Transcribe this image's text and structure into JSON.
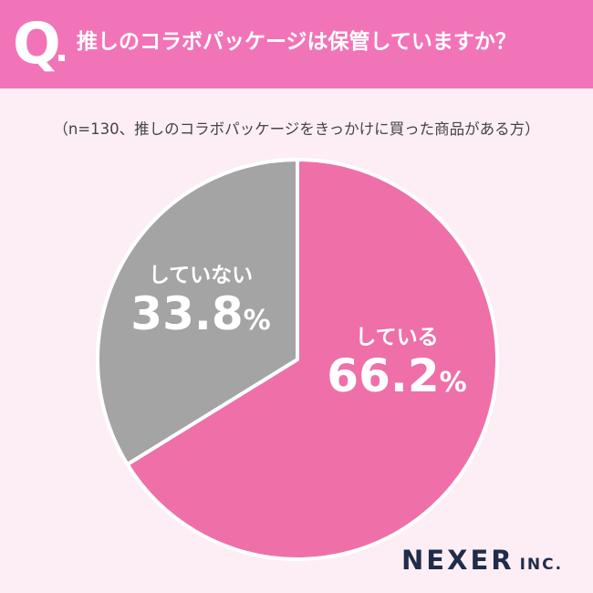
{
  "header": {
    "q_mark": "Q",
    "question": "推しのコラボパッケージは保管していますか？"
  },
  "subtitle": "（n=130、推しのコラボパッケージをきっかけに買った商品がある方）",
  "chart_data": {
    "type": "pie",
    "categories": [
      "している",
      "していない"
    ],
    "values": [
      66.2,
      33.8
    ],
    "value_labels": [
      "66.2",
      "33.8"
    ],
    "unit": "%",
    "colors": [
      "#ef6fa9",
      "#a4a4a4"
    ]
  },
  "brand": {
    "name": "NEXER",
    "suffix": "INC."
  }
}
